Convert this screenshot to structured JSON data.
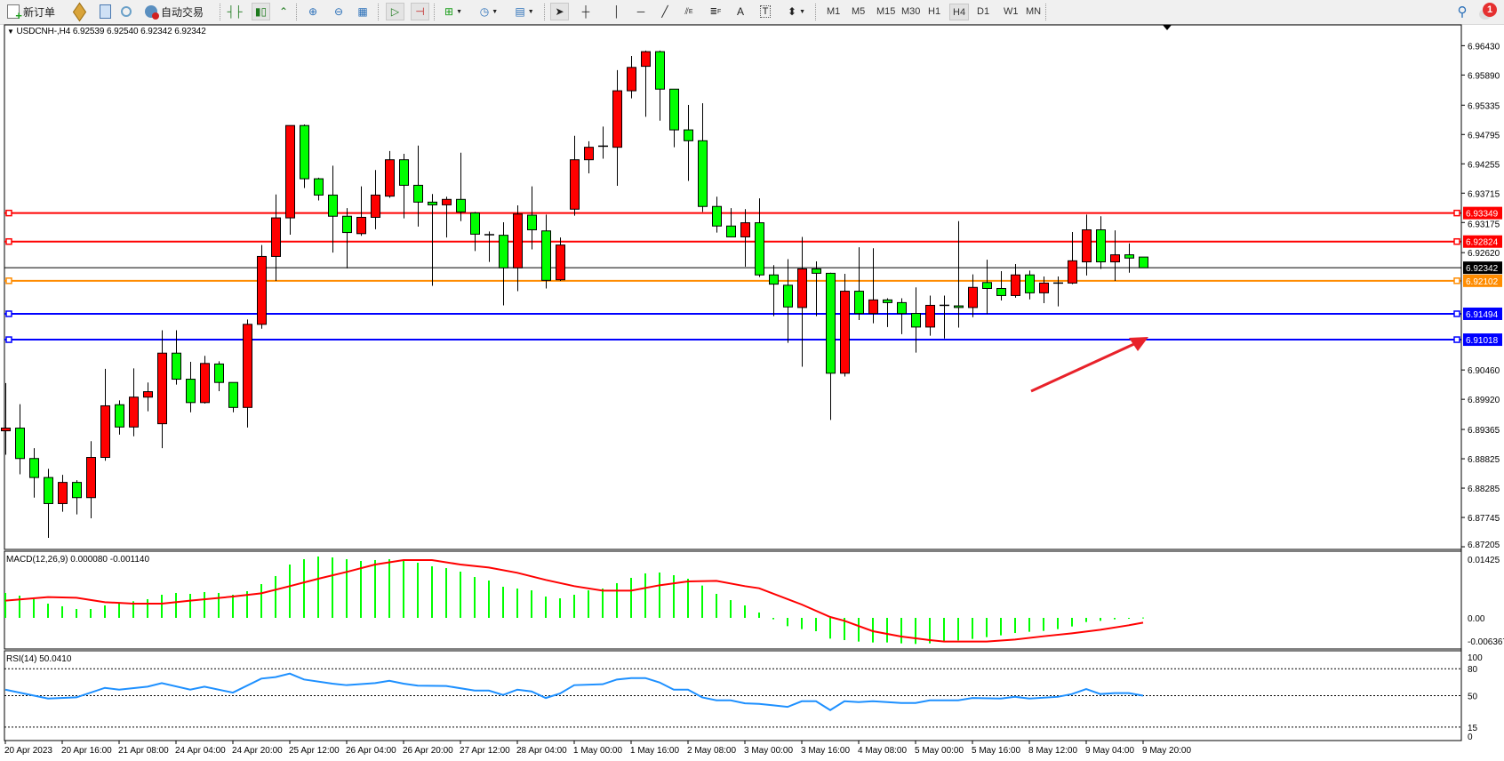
{
  "toolbar": {
    "new_order_label": "新订单",
    "auto_trading_label": "自动交易",
    "timeframes": [
      "M1",
      "M5",
      "M15",
      "M30",
      "H1",
      "H4",
      "D1",
      "W1",
      "MN"
    ],
    "selected_timeframe": "H4",
    "notification_count": "1",
    "tools": [
      "new-order-icon",
      "market-watch-icon",
      "data-window-icon",
      "navigator-icon",
      "auto-trading-icon",
      "bar-chart-icon",
      "candlestick-icon",
      "line-chart-icon",
      "zoom-in-icon",
      "zoom-out-icon",
      "tile-windows-icon",
      "auto-scroll-icon",
      "chart-shift-icon",
      "indicators-icon",
      "periods-clock-icon",
      "templates-icon",
      "cursor-icon",
      "crosshair-icon",
      "vertical-line-icon",
      "horizontal-line-icon",
      "trendline-icon",
      "fibonacci-channel-icon",
      "fibonacci-icon",
      "text-icon",
      "text-label-icon",
      "arrows-icon",
      "search-icon",
      "notification-icon"
    ],
    "fib_channel_glyph": "E",
    "fib_glyph": "F",
    "text_glyph": "A",
    "label_glyph": "T"
  },
  "chart": {
    "symbol_info": "USDCNH-,H4  6.92539 6.92540 6.92342 6.92342",
    "bull_color": "#ff0000",
    "bear_color": "#00ff00",
    "price_ticks": [
      "6.96430",
      "6.95890",
      "6.95335",
      "6.94795",
      "6.94255",
      "6.93715",
      "6.93175",
      "6.92620",
      "6.90460",
      "6.89920",
      "6.89365",
      "6.88825",
      "6.88285",
      "6.87745",
      "6.87205"
    ],
    "hlines": [
      {
        "price": "6.93349",
        "color": "#ff0000"
      },
      {
        "price": "6.92824",
        "color": "#ff0000"
      },
      {
        "price": "6.92342",
        "color": "#000000"
      },
      {
        "price": "6.92102",
        "color": "#ff8c00"
      },
      {
        "price": "6.91494",
        "color": "#0000ff"
      },
      {
        "price": "6.91018",
        "color": "#0000ff"
      }
    ],
    "arrow_color": "#e8222a",
    "candles": [
      [
        6.8934,
        6.9022,
        6.889,
        6.8939
      ],
      [
        6.8939,
        6.8983,
        6.8854,
        6.8883
      ],
      [
        6.8883,
        6.8902,
        6.8811,
        6.8848
      ],
      [
        6.8848,
        6.8864,
        6.8737,
        6.88
      ],
      [
        6.88,
        6.8853,
        6.8785,
        6.8839
      ],
      [
        6.8839,
        6.8843,
        6.878,
        6.8811
      ],
      [
        6.8811,
        6.8915,
        6.8773,
        6.8885
      ],
      [
        6.8885,
        6.9048,
        6.8879,
        6.898
      ],
      [
        6.8982,
        6.899,
        6.8927,
        6.8941
      ],
      [
        6.8941,
        6.9049,
        6.8924,
        6.8996
      ],
      [
        6.8996,
        6.9023,
        6.897,
        6.9006
      ],
      [
        6.8947,
        6.9119,
        6.8902,
        6.9077
      ],
      [
        6.9077,
        6.9119,
        6.9019,
        6.9029
      ],
      [
        6.9029,
        6.9061,
        6.8968,
        6.8986
      ],
      [
        6.8986,
        6.9072,
        6.8984,
        6.9058
      ],
      [
        6.9057,
        6.9062,
        6.9007,
        6.9023
      ],
      [
        6.9023,
        6.9023,
        6.8968,
        6.8977
      ],
      [
        6.8977,
        6.9139,
        6.894,
        6.913
      ],
      [
        6.913,
        6.9276,
        6.9122,
        6.9255
      ],
      [
        6.9255,
        6.9369,
        6.921,
        6.9326
      ],
      [
        6.9326,
        6.9496,
        6.9295,
        6.9496
      ],
      [
        6.9496,
        6.9498,
        6.9381,
        6.9398
      ],
      [
        6.9398,
        6.94,
        6.9358,
        6.9368
      ],
      [
        6.9368,
        6.9422,
        6.9262,
        6.9329
      ],
      [
        6.9329,
        6.9344,
        6.9233,
        6.9299
      ],
      [
        6.9297,
        6.9384,
        6.9293,
        6.9327
      ],
      [
        6.9327,
        6.9414,
        6.9305,
        6.9368
      ],
      [
        6.9366,
        6.9449,
        6.9363,
        6.9433
      ],
      [
        6.9433,
        6.9444,
        6.9325,
        6.9386
      ],
      [
        6.9386,
        6.9459,
        6.931,
        6.9355
      ],
      [
        6.9355,
        6.937,
        6.9201,
        6.935
      ],
      [
        6.935,
        6.9365,
        6.929,
        6.936
      ],
      [
        6.936,
        6.9446,
        6.932,
        6.9337
      ],
      [
        6.9335,
        6.9337,
        6.9265,
        6.9296
      ],
      [
        6.9295,
        6.9301,
        6.9245,
        6.9295
      ],
      [
        6.9294,
        6.9318,
        6.9165,
        6.9234
      ],
      [
        6.9234,
        6.9349,
        6.9191,
        6.9333
      ],
      [
        6.9331,
        6.9384,
        6.9268,
        6.9304
      ],
      [
        6.9302,
        6.9332,
        6.9196,
        6.9211
      ],
      [
        6.9212,
        6.929,
        6.921,
        6.9276
      ],
      [
        6.9342,
        6.9477,
        6.933,
        6.9433
      ],
      [
        6.9433,
        6.9467,
        6.9408,
        6.9456
      ],
      [
        6.9458,
        6.9494,
        6.9435,
        6.9458
      ],
      [
        6.9456,
        6.9598,
        6.9385,
        6.956
      ],
      [
        6.956,
        6.9624,
        6.9546,
        6.9603
      ],
      [
        6.9605,
        6.9634,
        6.9512,
        6.9632
      ],
      [
        6.9632,
        6.9634,
        6.9505,
        6.9563
      ],
      [
        6.9563,
        6.9563,
        6.9456,
        6.9488
      ],
      [
        6.9488,
        6.9534,
        6.9394,
        6.9468
      ],
      [
        6.9468,
        6.9537,
        6.9337,
        6.9347
      ],
      [
        6.9347,
        6.9365,
        6.9299,
        6.9311
      ],
      [
        6.9311,
        6.9344,
        6.9291,
        6.9291
      ],
      [
        6.9291,
        6.9342,
        6.9236,
        6.9317
      ],
      [
        6.9317,
        6.9362,
        6.9217,
        6.9221
      ],
      [
        6.9221,
        6.9239,
        6.9145,
        6.9204
      ],
      [
        6.9202,
        6.925,
        6.9096,
        6.9162
      ],
      [
        6.9161,
        6.9291,
        6.9052,
        6.9232
      ],
      [
        6.9232,
        6.9246,
        6.9145,
        6.9224
      ],
      [
        6.9224,
        6.9225,
        6.8954,
        6.904
      ],
      [
        6.904,
        6.9223,
        6.9034,
        6.9191
      ],
      [
        6.9191,
        6.9272,
        6.9138,
        6.915
      ],
      [
        6.915,
        6.927,
        6.9132,
        6.9175
      ],
      [
        6.9175,
        6.9178,
        6.9125,
        6.917
      ],
      [
        6.917,
        6.9178,
        6.9112,
        6.915
      ],
      [
        6.915,
        6.9198,
        6.9078,
        6.9125
      ],
      [
        6.9125,
        6.9183,
        6.9109,
        6.9165
      ],
      [
        6.9165,
        6.9183,
        6.9104,
        6.9165
      ],
      [
        6.9164,
        6.932,
        6.9124,
        6.9161
      ],
      [
        6.9161,
        6.9222,
        6.9143,
        6.9198
      ],
      [
        6.9207,
        6.9249,
        6.9149,
        6.9196
      ],
      [
        6.9196,
        6.9228,
        6.9174,
        6.9183
      ],
      [
        6.9183,
        6.9241,
        6.9179,
        6.9221
      ],
      [
        6.9221,
        6.9229,
        6.9176,
        6.9188
      ],
      [
        6.9188,
        6.9218,
        6.9169,
        6.9206
      ],
      [
        6.9206,
        6.9218,
        6.9163,
        6.9206
      ],
      [
        6.9206,
        6.93,
        6.9204,
        6.9247
      ],
      [
        6.9245,
        6.9332,
        6.922,
        6.9304
      ],
      [
        6.9304,
        6.9329,
        6.9232,
        6.9245
      ],
      [
        6.9245,
        6.9303,
        6.921,
        6.9258
      ],
      [
        6.9258,
        6.9279,
        6.9225,
        6.9252
      ],
      [
        6.92539,
        6.9254,
        6.92342,
        6.92342
      ]
    ],
    "time_labels": [
      "20 Apr 2023",
      "20 Apr 16:00",
      "21 Apr 08:00",
      "24 Apr 04:00",
      "24 Apr 20:00",
      "25 Apr 12:00",
      "26 Apr 04:00",
      "26 Apr 20:00",
      "27 Apr 12:00",
      "28 Apr 04:00",
      "1 May 00:00",
      "1 May 16:00",
      "2 May 08:00",
      "3 May 00:00",
      "3 May 16:00",
      "4 May 08:00",
      "5 May 00:00",
      "5 May 16:00",
      "8 May 12:00",
      "9 May 04:00",
      "9 May 20:00"
    ]
  },
  "macd": {
    "info": "MACD(12,26,9) 0.000080 -0.001140",
    "ticks": [
      "0.01425",
      "0.00",
      "-0.006367"
    ],
    "histogram_color": "#00ff00",
    "signal_color": "#ff0000",
    "histogram": [
      0.00596,
      0.00532,
      0.00447,
      0.0034,
      0.00277,
      0.00213,
      0.00213,
      0.00298,
      0.0034,
      0.00397,
      0.00447,
      0.00553,
      0.00596,
      0.00574,
      0.00617,
      0.00596,
      0.00553,
      0.00638,
      0.00808,
      0.01,
      0.01276,
      0.01404,
      0.01468,
      0.01446,
      0.01404,
      0.01361,
      0.01383,
      0.01404,
      0.01361,
      0.01319,
      0.01234,
      0.01191,
      0.01106,
      0.00978,
      0.00893,
      0.00744,
      0.00702,
      0.00659,
      0.0051,
      0.00468,
      0.00553,
      0.00659,
      0.00702,
      0.0083,
      0.00957,
      0.01064,
      0.01085,
      0.01021,
      0.00936,
      0.00773,
      0.00574,
      0.00425,
      0.00298,
      0.00128,
      -0.00035,
      -0.00199,
      -0.00269,
      -0.00319,
      -0.00496,
      -0.00532,
      -0.00567,
      -0.00588,
      -0.00588,
      -0.0061,
      -0.00624,
      -0.0061,
      -0.00581,
      -0.00539,
      -0.00503,
      -0.00461,
      -0.00418,
      -0.00362,
      -0.00333,
      -0.00312,
      -0.00269,
      -0.00206,
      -0.00099,
      -0.00071,
      -0.00035,
      -0.00014,
      8e-05
    ],
    "signal_points": [
      [
        0,
        0.00411
      ],
      [
        3,
        0.00496
      ],
      [
        5,
        0.00482
      ],
      [
        7,
        0.00376
      ],
      [
        9,
        0.0034
      ],
      [
        11,
        0.0034
      ],
      [
        13,
        0.00411
      ],
      [
        16,
        0.0051
      ],
      [
        18,
        0.00588
      ],
      [
        20,
        0.00759
      ],
      [
        22,
        0.00936
      ],
      [
        24,
        0.01099
      ],
      [
        26,
        0.01276
      ],
      [
        28,
        0.01383
      ],
      [
        30,
        0.01383
      ],
      [
        32,
        0.01276
      ],
      [
        34,
        0.01205
      ],
      [
        36,
        0.01078
      ],
      [
        38,
        0.00908
      ],
      [
        40,
        0.00759
      ],
      [
        42,
        0.00652
      ],
      [
        44,
        0.00652
      ],
      [
        46,
        0.0078
      ],
      [
        48,
        0.00872
      ],
      [
        50,
        0.00886
      ],
      [
        52,
        0.00759
      ],
      [
        53,
        0.00709
      ],
      [
        56,
        0.00319
      ],
      [
        58,
        0.00021
      ],
      [
        59,
        -0.00071
      ],
      [
        61,
        -0.00319
      ],
      [
        63,
        -0.00447
      ],
      [
        65,
        -0.00532
      ],
      [
        66,
        -0.00567
      ],
      [
        69,
        -0.00567
      ],
      [
        71,
        -0.00518
      ],
      [
        73,
        -0.0044
      ],
      [
        75,
        -0.00369
      ],
      [
        77,
        -0.00284
      ],
      [
        79,
        -0.00177
      ],
      [
        80,
        -0.00114
      ]
    ]
  },
  "rsi": {
    "info": "RSI(14) 50.0410",
    "ticks": [
      "100",
      "80",
      "50",
      "15",
      "0"
    ],
    "levels": [
      80,
      50,
      15
    ],
    "line_color": "#1e90ff",
    "points": [
      [
        0,
        56.7
      ],
      [
        3,
        46.8
      ],
      [
        5,
        48.1
      ],
      [
        7,
        58.7
      ],
      [
        8,
        56.7
      ],
      [
        10,
        60
      ],
      [
        11,
        64
      ],
      [
        13,
        56.7
      ],
      [
        14,
        60
      ],
      [
        16,
        53.4
      ],
      [
        18,
        69
      ],
      [
        19,
        70.7
      ],
      [
        20,
        74.6
      ],
      [
        21,
        68
      ],
      [
        23,
        63.4
      ],
      [
        24,
        61.7
      ],
      [
        26,
        64
      ],
      [
        27,
        66.6
      ],
      [
        28,
        63.4
      ],
      [
        29,
        61.1
      ],
      [
        31,
        60.8
      ],
      [
        33,
        55.7
      ],
      [
        34,
        55.7
      ],
      [
        35,
        50.8
      ],
      [
        36,
        56.7
      ],
      [
        37,
        54.7
      ],
      [
        38,
        47.4
      ],
      [
        39,
        52.4
      ],
      [
        40,
        61.7
      ],
      [
        42,
        62.7
      ],
      [
        43,
        68
      ],
      [
        44,
        69.6
      ],
      [
        45,
        69.6
      ],
      [
        46,
        64.7
      ],
      [
        47,
        56.7
      ],
      [
        48,
        56.7
      ],
      [
        49,
        48.1
      ],
      [
        50,
        44.8
      ],
      [
        51,
        44.8
      ],
      [
        52,
        41.5
      ],
      [
        53,
        40.8
      ],
      [
        54,
        39.2
      ],
      [
        55,
        37.5
      ],
      [
        56,
        43.8
      ],
      [
        57,
        43.8
      ],
      [
        58,
        33.9
      ],
      [
        59,
        43.8
      ],
      [
        60,
        42.8
      ],
      [
        61,
        43.8
      ],
      [
        63,
        41.8
      ],
      [
        64,
        41.8
      ],
      [
        65,
        44.8
      ],
      [
        67,
        44.8
      ],
      [
        68,
        47.4
      ],
      [
        70,
        46.8
      ],
      [
        71,
        48.7
      ],
      [
        72,
        46.8
      ],
      [
        74,
        48.7
      ],
      [
        75,
        51.8
      ],
      [
        76,
        57.4
      ],
      [
        77,
        51.8
      ],
      [
        78,
        52.8
      ],
      [
        79,
        52.8
      ],
      [
        80,
        50.04
      ]
    ]
  }
}
